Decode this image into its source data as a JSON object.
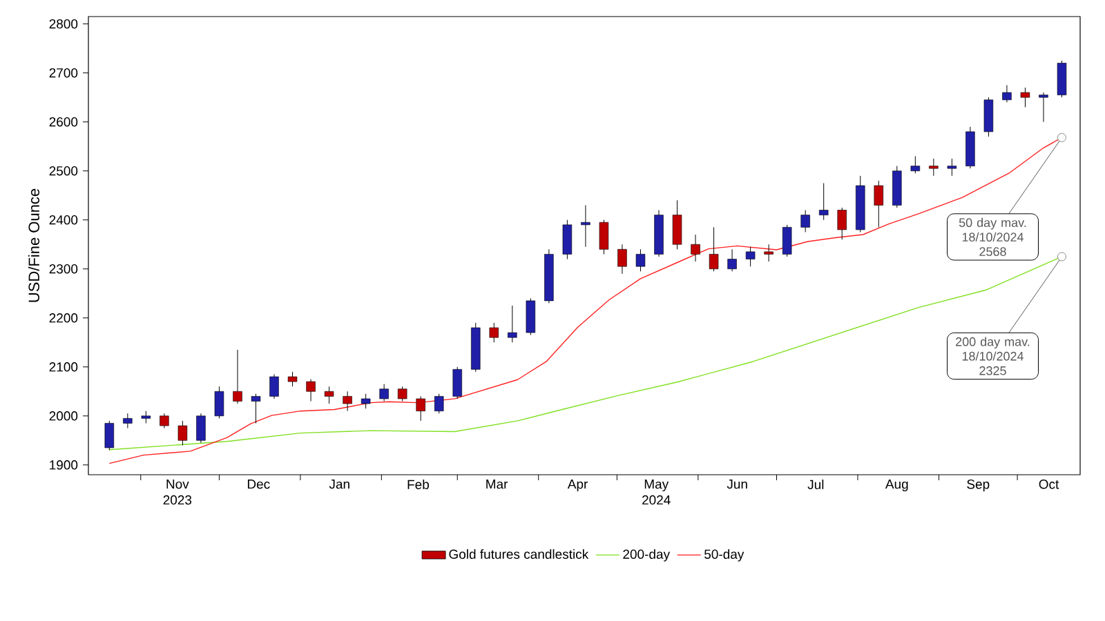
{
  "chart_data": {
    "type": "candlestick",
    "ylabel": "USD/Fine Ounce",
    "xlim": [
      "2023-10-12",
      "2024-10-25"
    ],
    "ylim": [
      1880,
      2815
    ],
    "yticks": [
      1900,
      2000,
      2100,
      2200,
      2300,
      2400,
      2500,
      2600,
      2700,
      2800
    ],
    "xticks": [
      {
        "value": "2023-11-01",
        "label": null
      },
      {
        "value": "2023-11-15",
        "label": "Nov 2023"
      },
      {
        "value": "2023-12-01",
        "label": null
      },
      {
        "value": "2023-12-16",
        "label": "Dec"
      },
      {
        "value": "2024-01-01",
        "label": null
      },
      {
        "value": "2024-01-16",
        "label": "Jan"
      },
      {
        "value": "2024-02-01",
        "label": null
      },
      {
        "value": "2024-02-15",
        "label": "Feb"
      },
      {
        "value": "2024-03-01",
        "label": null
      },
      {
        "value": "2024-03-16",
        "label": "Mar"
      },
      {
        "value": "2024-04-01",
        "label": null
      },
      {
        "value": "2024-04-16",
        "label": "Apr"
      },
      {
        "value": "2024-05-01",
        "label": null
      },
      {
        "value": "2024-05-16",
        "label": "May 2024"
      },
      {
        "value": "2024-06-01",
        "label": null
      },
      {
        "value": "2024-06-16",
        "label": "Jun"
      },
      {
        "value": "2024-07-01",
        "label": null
      },
      {
        "value": "2024-07-16",
        "label": "Jul"
      },
      {
        "value": "2024-08-01",
        "label": null
      },
      {
        "value": "2024-08-16",
        "label": "Aug"
      },
      {
        "value": "2024-09-01",
        "label": null
      },
      {
        "value": "2024-09-16",
        "label": "Sep"
      },
      {
        "value": "2024-10-01",
        "label": null
      },
      {
        "value": "2024-10-13",
        "label": "Oct"
      }
    ],
    "legend": "bottom",
    "series": [
      {
        "type": "candlestick",
        "name": "Gold futures candlestick",
        "color": "#c00000",
        "x": [
          "2023-10-20",
          "2023-10-27",
          "2023-11-03",
          "2023-11-10",
          "2023-11-17",
          "2023-11-24",
          "2023-12-01",
          "2023-12-08",
          "2023-12-15",
          "2023-12-22",
          "2023-12-29",
          "2024-01-05",
          "2024-01-12",
          "2024-01-19",
          "2024-01-26",
          "2024-02-02",
          "2024-02-09",
          "2024-02-16",
          "2024-02-23",
          "2024-03-01",
          "2024-03-08",
          "2024-03-15",
          "2024-03-22",
          "2024-03-29",
          "2024-04-05",
          "2024-04-12",
          "2024-04-19",
          "2024-04-26",
          "2024-05-03",
          "2024-05-10",
          "2024-05-17",
          "2024-05-24",
          "2024-05-31",
          "2024-06-07",
          "2024-06-14",
          "2024-06-21",
          "2024-06-28",
          "2024-07-05",
          "2024-07-12",
          "2024-07-19",
          "2024-07-26",
          "2024-08-02",
          "2024-08-09",
          "2024-08-16",
          "2024-08-23",
          "2024-08-30",
          "2024-09-06",
          "2024-09-13",
          "2024-09-20",
          "2024-09-27",
          "2024-10-04",
          "2024-10-11",
          "2024-10-18"
        ],
        "ohlc": [
          [
            1935,
            1990,
            1930,
            1985
          ],
          [
            1985,
            2005,
            1975,
            1995
          ],
          [
            1995,
            2010,
            1985,
            2000
          ],
          [
            2000,
            2005,
            1975,
            1980
          ],
          [
            1980,
            1990,
            1940,
            1950
          ],
          [
            1950,
            2005,
            1945,
            2000
          ],
          [
            2000,
            2060,
            1995,
            2050
          ],
          [
            2050,
            2135,
            2025,
            2030
          ],
          [
            2030,
            2045,
            1985,
            2040
          ],
          [
            2040,
            2085,
            2035,
            2080
          ],
          [
            2080,
            2090,
            2060,
            2070
          ],
          [
            2070,
            2075,
            2030,
            2050
          ],
          [
            2050,
            2060,
            2025,
            2040
          ],
          [
            2040,
            2050,
            2010,
            2025
          ],
          [
            2025,
            2045,
            2015,
            2035
          ],
          [
            2035,
            2065,
            2030,
            2055
          ],
          [
            2055,
            2060,
            2030,
            2035
          ],
          [
            2035,
            2040,
            1990,
            2010
          ],
          [
            2010,
            2045,
            2005,
            2040
          ],
          [
            2040,
            2100,
            2035,
            2095
          ],
          [
            2095,
            2190,
            2090,
            2180
          ],
          [
            2180,
            2190,
            2150,
            2160
          ],
          [
            2160,
            2225,
            2150,
            2170
          ],
          [
            2170,
            2240,
            2165,
            2235
          ],
          [
            2235,
            2340,
            2230,
            2330
          ],
          [
            2330,
            2400,
            2320,
            2390
          ],
          [
            2390,
            2430,
            2345,
            2395
          ],
          [
            2395,
            2400,
            2330,
            2340
          ],
          [
            2340,
            2350,
            2290,
            2305
          ],
          [
            2305,
            2340,
            2295,
            2330
          ],
          [
            2330,
            2420,
            2325,
            2410
          ],
          [
            2410,
            2440,
            2340,
            2350
          ],
          [
            2350,
            2370,
            2315,
            2330
          ],
          [
            2330,
            2385,
            2295,
            2300
          ],
          [
            2300,
            2340,
            2295,
            2320
          ],
          [
            2320,
            2345,
            2305,
            2335
          ],
          [
            2335,
            2350,
            2315,
            2330
          ],
          [
            2330,
            2390,
            2325,
            2385
          ],
          [
            2385,
            2420,
            2375,
            2410
          ],
          [
            2410,
            2475,
            2400,
            2420
          ],
          [
            2420,
            2425,
            2360,
            2380
          ],
          [
            2380,
            2490,
            2375,
            2470
          ],
          [
            2470,
            2480,
            2385,
            2430
          ],
          [
            2430,
            2510,
            2425,
            2500
          ],
          [
            2500,
            2530,
            2495,
            2510
          ],
          [
            2510,
            2525,
            2490,
            2505
          ],
          [
            2505,
            2525,
            2490,
            2510
          ],
          [
            2510,
            2590,
            2505,
            2580
          ],
          [
            2580,
            2650,
            2570,
            2645
          ],
          [
            2645,
            2675,
            2640,
            2660
          ],
          [
            2660,
            2670,
            2630,
            2650
          ],
          [
            2650,
            2660,
            2600,
            2655
          ],
          [
            2655,
            2725,
            2650,
            2720
          ]
        ],
        "colors": [
          "#1f1fa8",
          "#1f1fa8",
          "#1f1fa8",
          "#c00000",
          "#c00000",
          "#1f1fa8",
          "#1f1fa8",
          "#c00000",
          "#1f1fa8",
          "#1f1fa8",
          "#c00000",
          "#c00000",
          "#c00000",
          "#c00000",
          "#1f1fa8",
          "#1f1fa8",
          "#c00000",
          "#c00000",
          "#1f1fa8",
          "#1f1fa8",
          "#1f1fa8",
          "#c00000",
          "#1f1fa8",
          "#1f1fa8",
          "#1f1fa8",
          "#1f1fa8",
          "#1f1fa8",
          "#c00000",
          "#c00000",
          "#1f1fa8",
          "#1f1fa8",
          "#c00000",
          "#c00000",
          "#c00000",
          "#1f1fa8",
          "#1f1fa8",
          "#c00000",
          "#1f1fa8",
          "#1f1fa8",
          "#1f1fa8",
          "#c00000",
          "#1f1fa8",
          "#c00000",
          "#1f1fa8",
          "#1f1fa8",
          "#c00000",
          "#1f1fa8",
          "#1f1fa8",
          "#1f1fa8",
          "#1f1fa8",
          "#c00000",
          "#1f1fa8",
          "#1f1fa8"
        ]
      },
      {
        "type": "line",
        "name": "200-day",
        "color": "#80e020",
        "x": [
          "2023-10-20",
          "2023-12-04",
          "2024-01-01",
          "2024-01-28",
          "2024-02-29",
          "2024-03-24",
          "2024-04-10",
          "2024-05-01",
          "2024-05-24",
          "2024-06-22",
          "2024-08-24",
          "2024-09-19",
          "2024-10-18"
        ],
        "values": [
          1931,
          1948,
          1965,
          1970,
          1968,
          1990,
          2013,
          2041,
          2069,
          2111,
          2221,
          2257,
          2325
        ]
      },
      {
        "type": "line",
        "name": "50-day",
        "color": "#ff2020",
        "x": [
          "2023-10-20",
          "2023-11-02",
          "2023-11-20",
          "2023-12-04",
          "2023-12-13",
          "2023-12-21",
          "2024-01-01",
          "2024-01-14",
          "2024-01-28",
          "2024-02-04",
          "2024-02-15",
          "2024-02-29",
          "2024-03-24",
          "2024-04-04",
          "2024-04-16",
          "2024-04-28",
          "2024-05-10",
          "2024-05-24",
          "2024-06-05",
          "2024-06-16",
          "2024-07-01",
          "2024-07-13",
          "2024-07-24",
          "2024-08-03",
          "2024-08-13",
          "2024-08-24",
          "2024-09-10",
          "2024-09-28",
          "2024-10-11",
          "2024-10-18"
        ],
        "values": [
          1903,
          1920,
          1928,
          1956,
          1984,
          2001,
          2010,
          2013,
          2027,
          2029,
          2027,
          2035,
          2074,
          2111,
          2181,
          2237,
          2280,
          2313,
          2341,
          2347,
          2339,
          2356,
          2364,
          2370,
          2392,
          2412,
          2446,
          2496,
          2547,
          2568
        ]
      }
    ],
    "annotations": [
      {
        "text": "50 day mav. 18/10/2024 2568",
        "x": "2024-10-18",
        "y": 2568
      },
      {
        "text": "200 day mav. 18/10/2024 2325",
        "x": "2024-10-18",
        "y": 2325
      }
    ]
  }
}
